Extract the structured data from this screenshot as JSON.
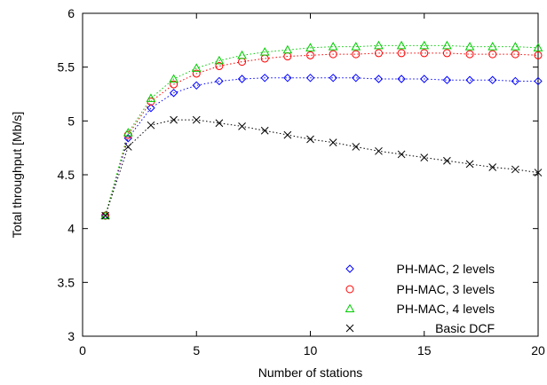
{
  "chart_data": {
    "type": "line",
    "xlabel": "Number of stations",
    "ylabel": "Total throughput [Mb/s]",
    "xlim": [
      0,
      20
    ],
    "ylim": [
      3,
      6
    ],
    "xticks": [
      0,
      5,
      10,
      15,
      20
    ],
    "yticks": [
      3,
      3.5,
      4,
      4.5,
      5,
      5.5,
      6
    ],
    "xtick_labels": [
      "0",
      "5",
      "10",
      "15",
      "20"
    ],
    "ytick_labels": [
      "3",
      "3.5",
      "4",
      "4.5",
      "5",
      "5.5",
      "6"
    ],
    "grid": false,
    "legend_position": "bottom-right",
    "x": [
      1,
      2,
      3,
      4,
      5,
      6,
      7,
      8,
      9,
      10,
      11,
      12,
      13,
      14,
      15,
      16,
      17,
      18,
      19,
      20
    ],
    "series": [
      {
        "name": "PH-MAC, 2 levels",
        "marker": "diamond",
        "color": "#0000ff",
        "values": [
          4.12,
          4.84,
          5.12,
          5.26,
          5.33,
          5.37,
          5.39,
          5.4,
          5.4,
          5.4,
          5.4,
          5.4,
          5.39,
          5.39,
          5.39,
          5.38,
          5.38,
          5.38,
          5.37,
          5.37
        ]
      },
      {
        "name": "PH-MAC, 3 levels",
        "marker": "circle",
        "color": "#ff0000",
        "values": [
          4.12,
          4.87,
          5.18,
          5.34,
          5.44,
          5.51,
          5.55,
          5.58,
          5.6,
          5.61,
          5.62,
          5.62,
          5.63,
          5.63,
          5.63,
          5.63,
          5.62,
          5.62,
          5.62,
          5.61
        ]
      },
      {
        "name": "PH-MAC, 4 levels",
        "marker": "triangle",
        "color": "#00cc00",
        "values": [
          4.12,
          4.89,
          5.21,
          5.39,
          5.49,
          5.56,
          5.61,
          5.64,
          5.66,
          5.68,
          5.69,
          5.69,
          5.7,
          5.7,
          5.7,
          5.7,
          5.69,
          5.69,
          5.69,
          5.68
        ]
      },
      {
        "name": "Basic DCF",
        "marker": "cross",
        "color": "#000000",
        "values": [
          4.12,
          4.76,
          4.96,
          5.01,
          5.01,
          4.98,
          4.95,
          4.91,
          4.87,
          4.83,
          4.8,
          4.76,
          4.72,
          4.69,
          4.66,
          4.63,
          4.6,
          4.57,
          4.55,
          4.52
        ]
      }
    ]
  }
}
